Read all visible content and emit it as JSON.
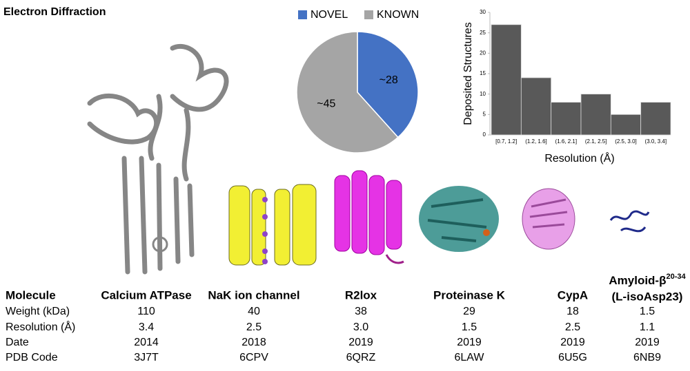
{
  "title": "Electron Diffraction",
  "chart_data": [
    {
      "type": "pie",
      "categories": [
        "NOVEL",
        "KNOWN"
      ],
      "values": [
        28,
        45
      ],
      "value_labels": [
        "~28",
        "~45"
      ],
      "colors": [
        "#4472c4",
        "#a5a5a5"
      ],
      "legend": "top"
    },
    {
      "type": "bar",
      "categories": [
        "[0.7, 1.2]",
        "(1.2, 1.6]",
        "(1.6, 2.1]",
        "(2.1, 2.5]",
        "(2.5, 3.0]",
        "(3.0, 3.4]"
      ],
      "values": [
        27,
        14,
        8,
        10,
        5,
        8
      ],
      "color": "#595959",
      "xlabel": "Resolution (Å)",
      "ylabel": "Deposited Structures",
      "ylim": [
        0,
        30
      ],
      "yticks": [
        0,
        5,
        10,
        15,
        20,
        25,
        30
      ],
      "grid": false
    }
  ],
  "table": {
    "columns": [
      "Molecule",
      "Calcium ATPase",
      "NaK ion channel",
      "R2lox",
      "Proteinase K",
      "CypA",
      "Amyloid-β"
    ],
    "last_column_superscript": "20-34",
    "last_column_second_line": "(L-isoAsp23)",
    "rows": [
      [
        "Weight (kDa)",
        "110",
        "40",
        "38",
        "29",
        "18",
        "1.5"
      ],
      [
        "Resolution (Å)",
        "3.4",
        "2.5",
        "3.0",
        "1.5",
        "2.5",
        "1.1"
      ],
      [
        "Date",
        "2014",
        "2018",
        "2019",
        "2019",
        "2019",
        "2019"
      ],
      [
        "PDB Code",
        "3J7T",
        "6CPV",
        "6QRZ",
        "6LAW",
        "6U5G",
        "6NB9"
      ]
    ]
  }
}
